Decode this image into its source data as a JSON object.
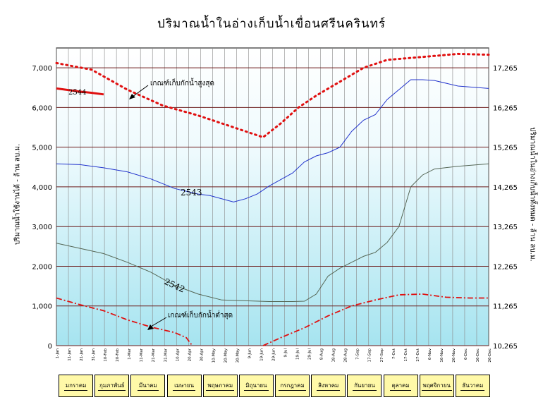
{
  "chart_data": {
    "type": "line",
    "title": "ปริมาณน้ำในอ่างเก็บน้ำเขื่อนศรีนครินทร์",
    "ylabel_left": "ปริมาณน้ำใช้งานได้ - ล้าน ลบ.ม.",
    "ylabel_right": "ปริมาณน้ำในอ่างเก็บน้ำทั้งหมด - ล้าน ลบ.ม.",
    "y_left_ticks": [
      "0",
      "1,000",
      "2,000",
      "3,000",
      "4,000",
      "5,000",
      "6,000",
      "7,000"
    ],
    "y_right_ticks": [
      "10,265",
      "11,265",
      "12,265",
      "13,265",
      "14,265",
      "15,265",
      "16,265",
      "17,265"
    ],
    "ylim": [
      0,
      7500
    ],
    "x_range_days": [
      0,
      366
    ],
    "x_ticks": [
      "1-Jan",
      "11-Jan",
      "21-Jan",
      "31-Jan",
      "10-Feb",
      "20-Feb",
      "1-Mar",
      "11-Mar",
      "21-Mar",
      "31-Mar",
      "10-Apr",
      "20-Apr",
      "30-Apr",
      "10-May",
      "20-May",
      "30-May",
      "9-Jun",
      "19-Jun",
      "29-Jun",
      "9-Jul",
      "19-Jul",
      "29-Jul",
      "8-Aug",
      "18-Aug",
      "28-Aug",
      "7-Sep",
      "17-Sep",
      "27-Sep",
      "7-Oct",
      "17-Oct",
      "27-Oct",
      "6-Nov",
      "16-Nov",
      "26-Nov",
      "6-Dec",
      "16-Dec",
      "26-Dec"
    ],
    "months": [
      "มกราคม",
      "กุมภาพันธ์",
      "มีนาคม",
      "เมษายน",
      "พฤษภาคม",
      "มิถุนายน",
      "กรกฎาคม",
      "สิงหาคม",
      "กันยายน",
      "ตุลาคม",
      "พฤศจิกายน",
      "ธันวาคม"
    ],
    "grid": true,
    "annotations": {
      "upper_rule": "เกณฑ์เก็บกักน้ำสูงสุด",
      "lower_rule": "เกณฑ์เก็บกักน้ำต่ำสุด",
      "label_2544": "2544",
      "label_2543": "2543",
      "label_2542": "2542"
    },
    "series": [
      {
        "name": "2544",
        "color": "#e01010",
        "style": "solid-thick",
        "x": [
          0,
          10,
          20,
          30,
          40
        ],
        "y": [
          6480,
          6440,
          6400,
          6370,
          6330
        ]
      },
      {
        "name": "2543",
        "color": "#2233cc",
        "style": "solid",
        "x": [
          0,
          20,
          40,
          60,
          80,
          100,
          120,
          130,
          150,
          160,
          170,
          180,
          200,
          210,
          220,
          230,
          240,
          250,
          260,
          270,
          280,
          300,
          310,
          320,
          340,
          366
        ],
        "y": [
          4580,
          4560,
          4480,
          4380,
          4200,
          3960,
          3820,
          3780,
          3620,
          3700,
          3820,
          4020,
          4350,
          4630,
          4780,
          4860,
          5000,
          5400,
          5680,
          5820,
          6200,
          6700,
          6700,
          6680,
          6540,
          6480
        ]
      },
      {
        "name": "2542",
        "color": "#556655",
        "style": "solid",
        "x": [
          0,
          20,
          40,
          60,
          80,
          100,
          120,
          140,
          160,
          180,
          200,
          210,
          220,
          230,
          240,
          250,
          260,
          270,
          280,
          290,
          300,
          310,
          320,
          340,
          366
        ],
        "y": [
          2580,
          2450,
          2320,
          2100,
          1850,
          1520,
          1300,
          1150,
          1130,
          1110,
          1110,
          1120,
          1300,
          1750,
          1950,
          2100,
          2250,
          2350,
          2600,
          3000,
          4000,
          4300,
          4450,
          4520,
          4580
        ]
      },
      {
        "name": "upper-rule",
        "color": "#e01010",
        "style": "dotted",
        "x": [
          0,
          30,
          60,
          90,
          120,
          150,
          175,
          190,
          205,
          220,
          240,
          260,
          280,
          300,
          320,
          340,
          366
        ],
        "y": [
          7120,
          6950,
          6450,
          6050,
          5800,
          5500,
          5250,
          5600,
          6000,
          6300,
          6650,
          7000,
          7200,
          7250,
          7300,
          7350,
          7330
        ]
      },
      {
        "name": "lower-rule",
        "color": "#e01010",
        "style": "dash-dot",
        "x": [
          0,
          20,
          40,
          60,
          80,
          100,
          110,
          115
        ],
        "y": [
          1200,
          1030,
          880,
          650,
          470,
          330,
          200,
          0
        ]
      },
      {
        "name": "lower-rule-2",
        "color": "#e01010",
        "style": "dash-dot",
        "x": [
          175,
          190,
          210,
          230,
          250,
          270,
          290,
          310,
          330,
          350,
          366
        ],
        "y": [
          0,
          200,
          450,
          750,
          1000,
          1150,
          1280,
          1300,
          1220,
          1200,
          1200
        ]
      }
    ]
  }
}
